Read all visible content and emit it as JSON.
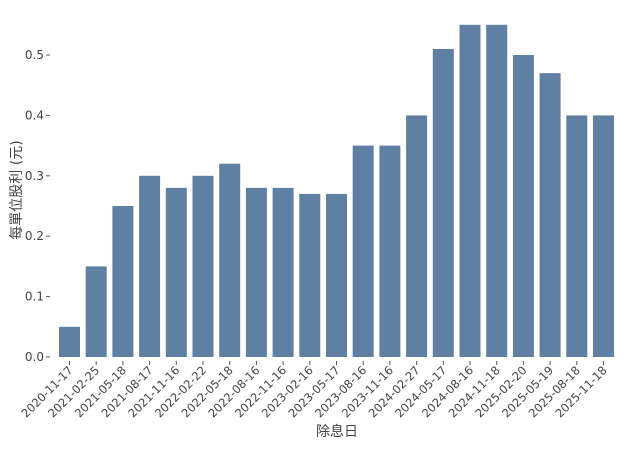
{
  "chart_data": {
    "type": "bar",
    "title": "",
    "xlabel": "除息日",
    "ylabel": "每單位股利 (元)",
    "ylim": [
      0,
      0.56
    ],
    "yticks": [
      0.0,
      0.1,
      0.2,
      0.3,
      0.4,
      0.5
    ],
    "ytick_labels": [
      "0.0",
      "0.1",
      "0.2",
      "0.3",
      "0.4",
      "0.5"
    ],
    "grid": false,
    "bar_color": "#5f7fa3",
    "categories": [
      "2020-11-17",
      "2021-02-25",
      "2021-05-18",
      "2021-08-17",
      "2021-11-16",
      "2022-02-22",
      "2022-05-18",
      "2022-08-16",
      "2022-11-16",
      "2023-02-16",
      "2023-05-17",
      "2023-08-16",
      "2023-11-16",
      "2024-02-27",
      "2024-05-17",
      "2024-08-16",
      "2024-11-18",
      "2025-02-20",
      "2025-05-19",
      "2025-08-18",
      "2025-11-18"
    ],
    "values": [
      0.05,
      0.15,
      0.25,
      0.3,
      0.28,
      0.3,
      0.32,
      0.28,
      0.28,
      0.27,
      0.27,
      0.35,
      0.35,
      0.4,
      0.51,
      0.55,
      0.55,
      0.5,
      0.47,
      0.4,
      0.4
    ]
  }
}
